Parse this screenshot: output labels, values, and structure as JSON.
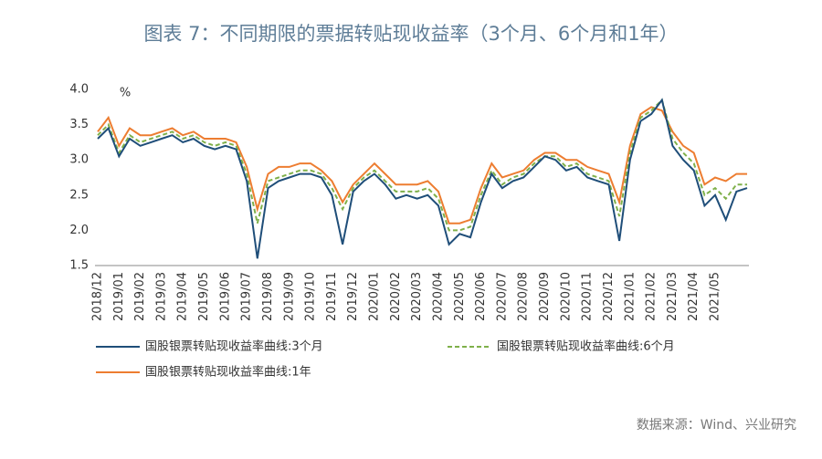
{
  "chart_data": {
    "type": "line",
    "title": "图表 7：不同期限的票据转贴现收益率（3个月、6个月和1年）",
    "y_unit": "%",
    "source": "数据来源：Wind、兴业研究",
    "categories": [
      "2018/12",
      null,
      "2019/01",
      null,
      "2019/02",
      null,
      "2019/03",
      null,
      "2019/04",
      null,
      "2019/05",
      null,
      "2019/06",
      null,
      "2019/07",
      null,
      "2019/08",
      null,
      "2019/09",
      null,
      "2019/10",
      null,
      "2019/11",
      null,
      "2019/12",
      null,
      "2020/01",
      null,
      "2020/02",
      null,
      "2020/03",
      null,
      "2020/04",
      null,
      "2020/05",
      null,
      "2020/06",
      null,
      "2020/07",
      null,
      "2020/08",
      null,
      "2020/09",
      null,
      "2020/10",
      null,
      "2020/11",
      null,
      "2020/12",
      null,
      "2021/01",
      null,
      "2021/02",
      null,
      "2021/03",
      null,
      "2021/04",
      null,
      "2021/05",
      null,
      null,
      null
    ],
    "series": [
      {
        "name": "国股银票转贴现收益率曲线:3个月",
        "color": "#1f4e79",
        "dashed": false,
        "values": [
          3.3,
          3.45,
          3.05,
          3.3,
          3.2,
          3.25,
          3.3,
          3.35,
          3.25,
          3.3,
          3.2,
          3.15,
          3.2,
          3.15,
          2.7,
          1.6,
          2.6,
          2.7,
          2.75,
          2.8,
          2.8,
          2.75,
          2.5,
          1.8,
          2.55,
          2.7,
          2.8,
          2.65,
          2.45,
          2.5,
          2.45,
          2.5,
          2.35,
          1.8,
          1.95,
          1.9,
          2.4,
          2.8,
          2.6,
          2.7,
          2.75,
          2.9,
          3.05,
          3.0,
          2.85,
          2.9,
          2.75,
          2.7,
          2.65,
          1.85,
          3.0,
          3.55,
          3.65,
          3.85,
          3.2,
          3.0,
          2.85,
          2.35,
          2.5,
          2.15,
          2.55,
          2.6
        ]
      },
      {
        "name": "国股银票转贴现收益率曲线:6个月",
        "color": "#7fb04a",
        "dashed": true,
        "values": [
          3.35,
          3.5,
          3.1,
          3.35,
          3.25,
          3.3,
          3.35,
          3.4,
          3.3,
          3.35,
          3.25,
          3.2,
          3.25,
          3.2,
          2.8,
          2.1,
          2.7,
          2.75,
          2.8,
          2.85,
          2.85,
          2.8,
          2.6,
          2.3,
          2.6,
          2.75,
          2.85,
          2.7,
          2.55,
          2.55,
          2.55,
          2.6,
          2.45,
          2.0,
          2.0,
          2.05,
          2.5,
          2.85,
          2.65,
          2.75,
          2.8,
          2.95,
          3.05,
          3.05,
          2.9,
          2.95,
          2.8,
          2.75,
          2.7,
          2.2,
          3.1,
          3.6,
          3.7,
          3.85,
          3.3,
          3.1,
          2.95,
          2.5,
          2.6,
          2.45,
          2.65,
          2.65
        ]
      },
      {
        "name": "国股银票转贴现收益率曲线:1年",
        "color": "#ed7d31",
        "dashed": false,
        "values": [
          3.4,
          3.6,
          3.2,
          3.45,
          3.35,
          3.35,
          3.4,
          3.45,
          3.35,
          3.4,
          3.3,
          3.3,
          3.3,
          3.25,
          2.9,
          2.3,
          2.8,
          2.9,
          2.9,
          2.95,
          2.95,
          2.85,
          2.7,
          2.4,
          2.65,
          2.8,
          2.95,
          2.8,
          2.65,
          2.65,
          2.65,
          2.7,
          2.55,
          2.1,
          2.1,
          2.15,
          2.6,
          2.95,
          2.75,
          2.8,
          2.85,
          3.0,
          3.1,
          3.1,
          3.0,
          3.0,
          2.9,
          2.85,
          2.8,
          2.4,
          3.2,
          3.65,
          3.75,
          3.7,
          3.4,
          3.2,
          3.1,
          2.65,
          2.75,
          2.7,
          2.8,
          2.8
        ]
      }
    ],
    "ylim": [
      1.5,
      4.0
    ],
    "yticks": [
      1.5,
      {
        "value": 2,
        "label": "2.0"
      },
      2.5,
      {
        "value": 3,
        "label": "3.0"
      },
      3.5,
      {
        "value": 4,
        "label": "4.0"
      }
    ],
    "grid": false
  }
}
